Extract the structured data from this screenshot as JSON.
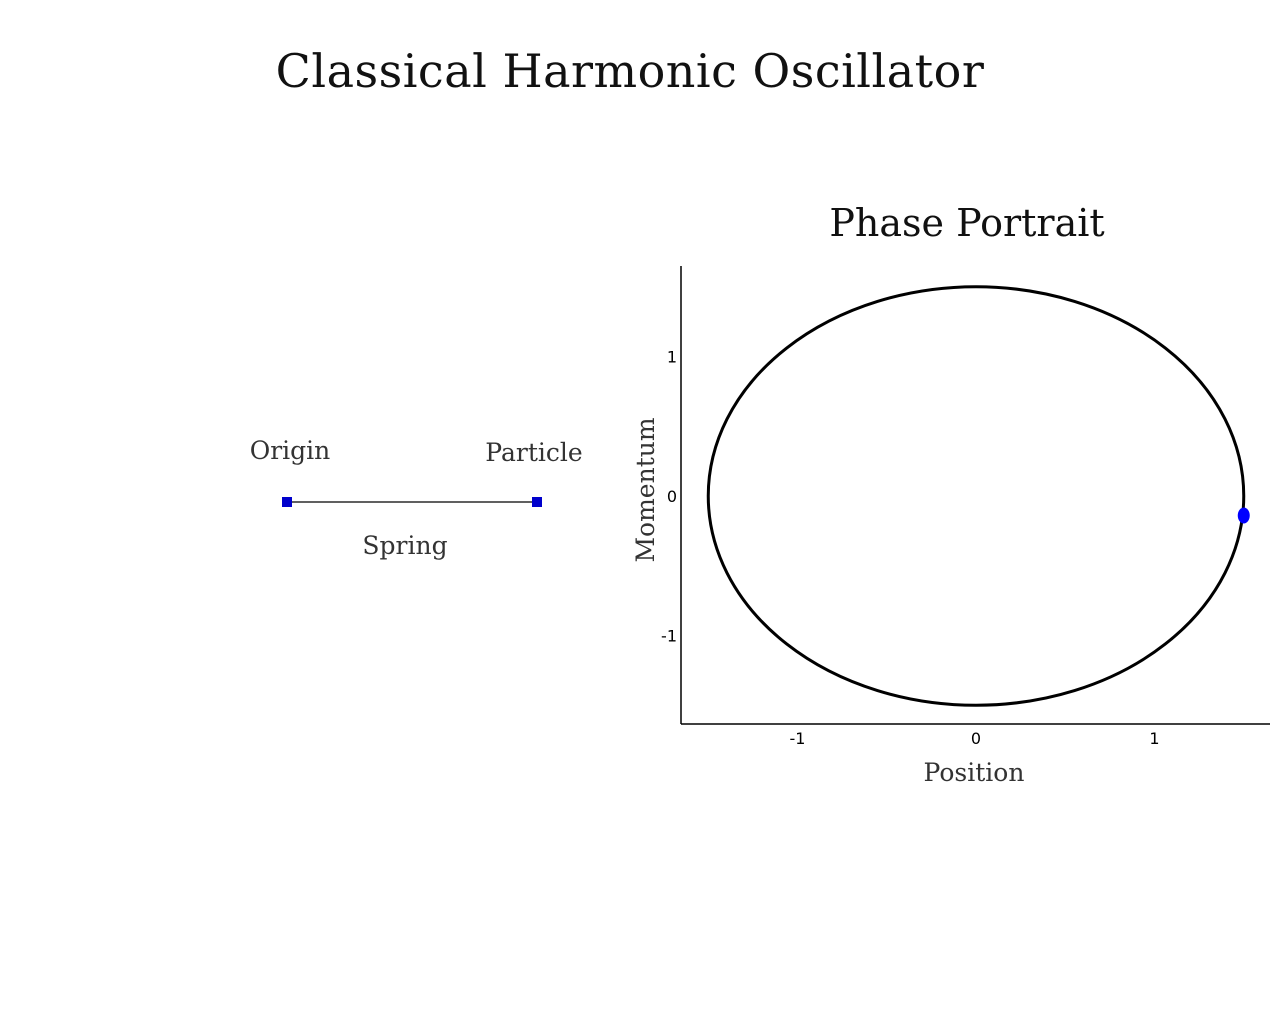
{
  "title": "Classical Harmonic Oscillator",
  "spring_diagram": {
    "origin_label": "Origin",
    "particle_label": "Particle",
    "spring_label": "Spring",
    "marker_color": "#0000cc",
    "line_color": "#000000"
  },
  "chart_data": {
    "type": "line",
    "title": "Phase Portrait",
    "xlabel": "Position",
    "ylabel": "Momentum",
    "xlim": [
      -1.65,
      1.65
    ],
    "ylim": [
      -1.65,
      1.65
    ],
    "x_ticks": [
      {
        "value": -1,
        "label": "-1"
      },
      {
        "value": 0,
        "label": "0"
      },
      {
        "value": 1,
        "label": "1"
      }
    ],
    "y_ticks": [
      {
        "value": 1,
        "label": "1"
      },
      {
        "value": 0,
        "label": "0"
      },
      {
        "value": -1,
        "label": "-1"
      }
    ],
    "grid": false,
    "series": [
      {
        "kind": "ellipse",
        "center": [
          0,
          0
        ],
        "radius_x": 1.5,
        "radius_y": 1.5,
        "color": "#000000"
      }
    ],
    "current_state": {
      "x": 1.5,
      "y": -0.14,
      "color": "#0000ff"
    }
  }
}
